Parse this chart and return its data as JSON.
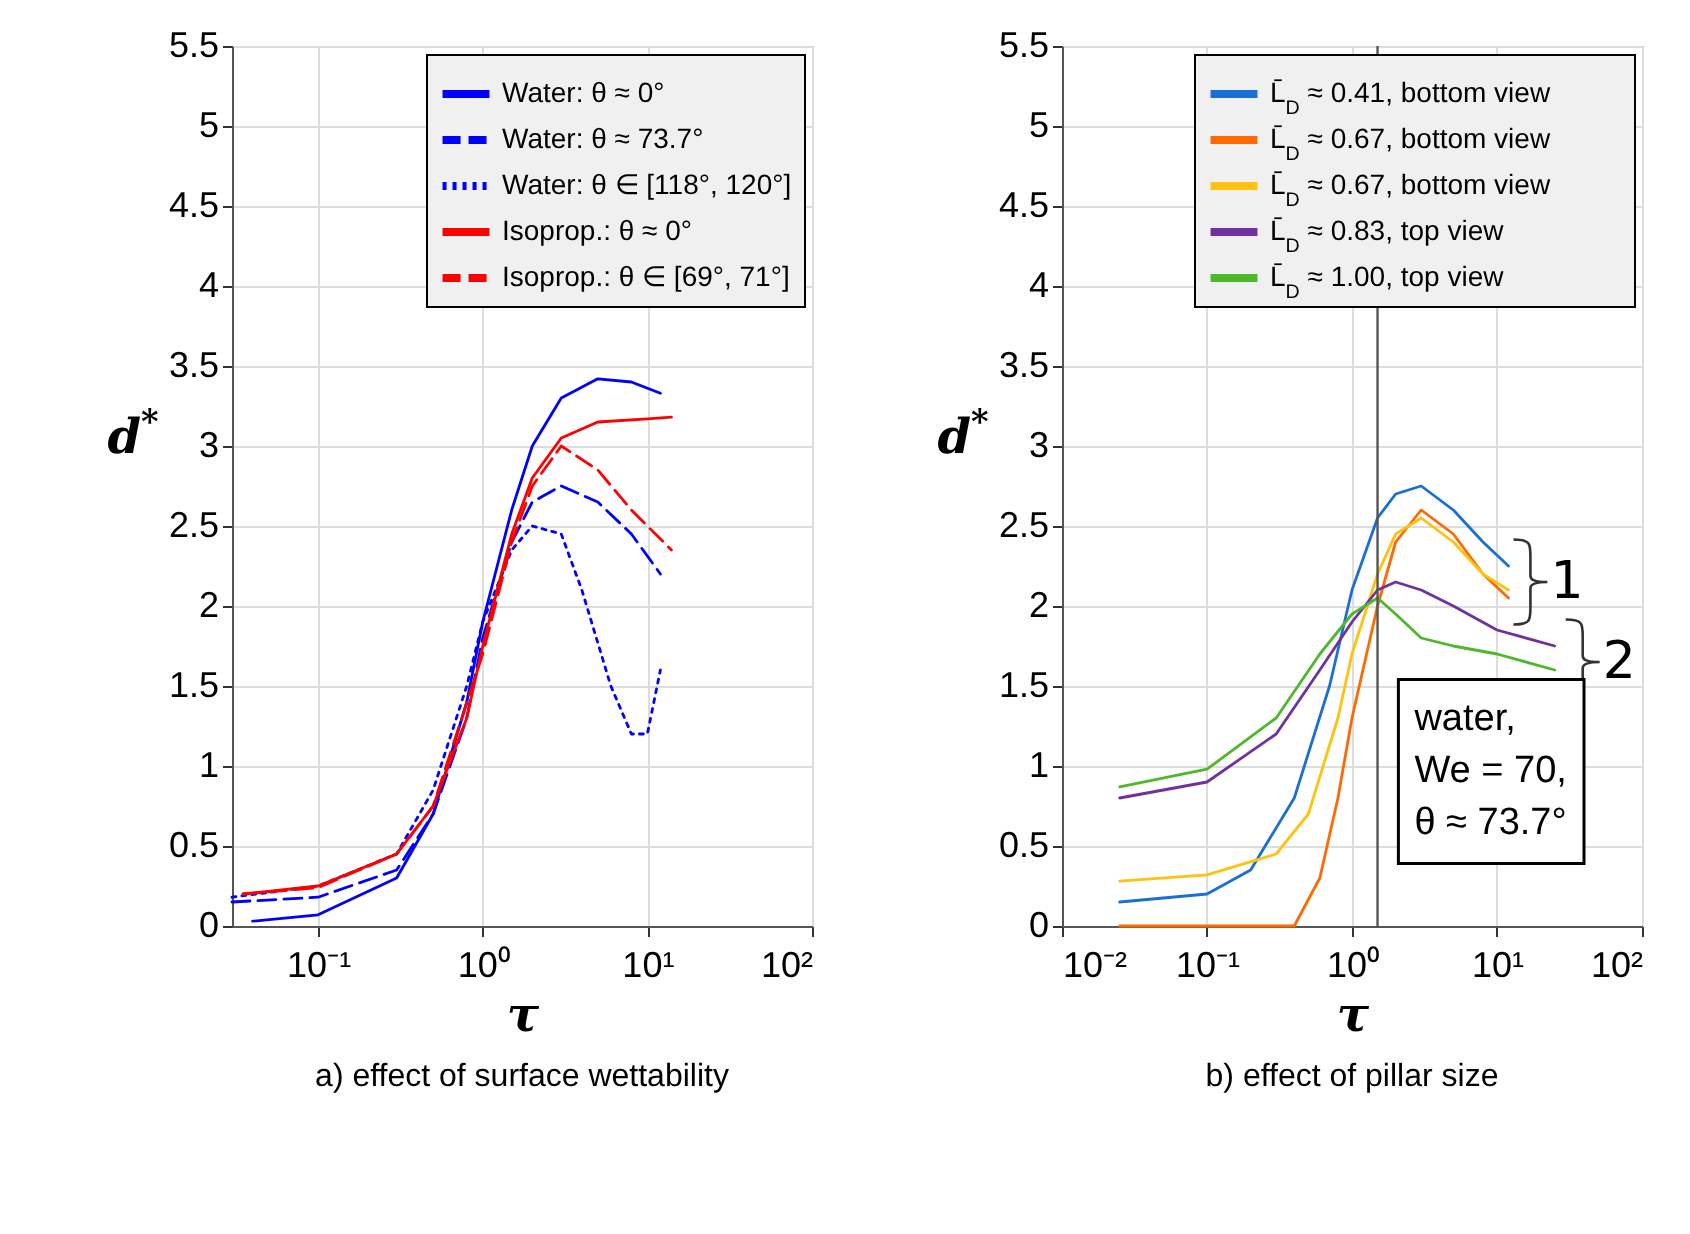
{
  "chart_data": [
    {
      "type": "line",
      "title": "a) effect of surface wettability",
      "xlabel": "τ",
      "ylabel": "d$^{*}$",
      "log": "x",
      "grid": true,
      "legend": "top right",
      "xlim": [
        0.03,
        100
      ],
      "xticks": [
        {
          "value": 0.1,
          "label": "10⁻¹"
        },
        {
          "value": 1,
          "label": "10⁰"
        },
        {
          "value": 10,
          "label": "10¹"
        },
        {
          "value": 100,
          "label": "10²"
        }
      ],
      "ylim": [
        0,
        5.5
      ],
      "yticks": [
        0,
        0.5,
        1,
        1.5,
        2,
        2.5,
        3,
        3.5,
        4,
        4.5,
        5,
        5.5
      ],
      "series": [
        {
          "name": "Water: θ ≈ 0°",
          "color": "#0000ff",
          "line_style": "solid",
          "x": [
            0.04,
            0.1,
            0.3,
            0.5,
            0.8,
            1,
            1.5,
            2,
            3,
            5,
            8,
            12
          ],
          "values": [
            0.03,
            0.07,
            0.3,
            0.7,
            1.4,
            1.9,
            2.6,
            3.0,
            3.3,
            3.42,
            3.4,
            3.33
          ]
        },
        {
          "name": "Water: θ ≈ 73.7°",
          "color": "#0000ff",
          "line_style": "dashed",
          "x": [
            0.03,
            0.1,
            0.3,
            0.5,
            0.8,
            1,
            1.5,
            2,
            3,
            5,
            8,
            12
          ],
          "values": [
            0.15,
            0.18,
            0.35,
            0.7,
            1.3,
            1.8,
            2.4,
            2.65,
            2.75,
            2.65,
            2.45,
            2.2
          ]
        },
        {
          "name": "Water: θ ∈ [118°, 120°]",
          "color": "#0000ff",
          "line_style": "dotted",
          "x": [
            0.03,
            0.1,
            0.3,
            0.5,
            0.8,
            1,
            1.5,
            2,
            3,
            4,
            6,
            8,
            10,
            12
          ],
          "values": [
            0.18,
            0.25,
            0.45,
            0.85,
            1.5,
            1.9,
            2.35,
            2.5,
            2.45,
            2.1,
            1.5,
            1.2,
            1.2,
            1.6
          ]
        },
        {
          "name": "Isoprop.: θ ≈ 0°",
          "color": "#ff0000",
          "line_style": "solid",
          "x": [
            0.035,
            0.1,
            0.3,
            0.5,
            0.8,
            1,
            1.5,
            2,
            3,
            5,
            10,
            14
          ],
          "values": [
            0.2,
            0.25,
            0.45,
            0.75,
            1.3,
            1.75,
            2.45,
            2.8,
            3.05,
            3.15,
            3.17,
            3.18
          ]
        },
        {
          "name": "Isoprop.: θ ∈ [69°, 71°]",
          "color": "#ff0000",
          "line_style": "dashed",
          "x": [
            0.035,
            0.1,
            0.3,
            0.5,
            1,
            1.5,
            2,
            3,
            5,
            8,
            14
          ],
          "values": [
            0.2,
            0.24,
            0.45,
            0.75,
            1.7,
            2.4,
            2.75,
            3.0,
            2.85,
            2.6,
            2.35
          ]
        }
      ]
    },
    {
      "type": "line",
      "title": "b) effect of pillar size",
      "xlabel": "τ",
      "ylabel": "d$^{*}$",
      "log": "x",
      "grid": true,
      "legend": "top right",
      "xlim": [
        0.01,
        100
      ],
      "xticks": [
        {
          "value": 0.01,
          "label": "10⁻²"
        },
        {
          "value": 0.1,
          "label": "10⁻¹"
        },
        {
          "value": 1,
          "label": "10⁰"
        },
        {
          "value": 10,
          "label": "10¹"
        },
        {
          "value": 100,
          "label": "10²"
        }
      ],
      "ylim": [
        0,
        5.5
      ],
      "yticks": [
        0,
        0.5,
        1,
        1.5,
        2,
        2.5,
        3,
        3.5,
        4,
        4.5,
        5,
        5.5
      ],
      "ref_lines": [
        {
          "axis": "x",
          "value": 1.5,
          "color": "#555555"
        }
      ],
      "annotations": [
        {
          "text": "1",
          "x": 17,
          "y": 2.15
        },
        {
          "text": "2",
          "x": 39,
          "y": 1.65
        },
        "water,\nWe = 70,\nθ ≈ 73.7°"
      ],
      "series": [
        {
          "name": "L̄$_{D}$ ≈ 0.41, bottom view",
          "color": "#1a6fd6",
          "x": [
            0.025,
            0.1,
            0.2,
            0.4,
            0.7,
            1,
            1.5,
            2,
            3,
            5,
            8,
            12
          ],
          "values": [
            0.15,
            0.2,
            0.35,
            0.8,
            1.5,
            2.1,
            2.55,
            2.7,
            2.75,
            2.6,
            2.4,
            2.25
          ]
        },
        {
          "name": "L̄$_{D}$ ≈ 0.67, bottom view",
          "color": "#ff6a00",
          "x": [
            0.025,
            0.4,
            0.6,
            0.8,
            1,
            1.5,
            2,
            3,
            5,
            8,
            12
          ],
          "values": [
            0,
            0,
            0.3,
            0.8,
            1.3,
            2.0,
            2.4,
            2.6,
            2.45,
            2.2,
            2.05
          ]
        },
        {
          "name": "L̄$_{D}$ ≈ 0.67, bottom view",
          "color": "#ffc20e",
          "x": [
            0.025,
            0.1,
            0.3,
            0.5,
            0.8,
            1,
            1.5,
            2,
            3,
            5,
            8,
            12
          ],
          "values": [
            0.28,
            0.32,
            0.45,
            0.7,
            1.3,
            1.7,
            2.2,
            2.45,
            2.55,
            2.4,
            2.2,
            2.1
          ]
        },
        {
          "name": "L̄$_{D}$ ≈ 0.83, top view",
          "color": "#7030a0",
          "x": [
            0.025,
            0.1,
            0.3,
            0.6,
            1,
            1.5,
            2,
            3,
            5,
            10,
            25
          ],
          "values": [
            0.8,
            0.9,
            1.2,
            1.6,
            1.9,
            2.1,
            2.15,
            2.1,
            2.0,
            1.85,
            1.75
          ]
        },
        {
          "name": "L̄$_{D}$ ≈ 1.00, top view",
          "color": "#4cb82a",
          "x": [
            0.025,
            0.1,
            0.3,
            0.6,
            1,
            1.5,
            2,
            3,
            5,
            10,
            25
          ],
          "values": [
            0.87,
            0.98,
            1.3,
            1.7,
            1.95,
            2.05,
            1.95,
            1.8,
            1.75,
            1.7,
            1.6
          ]
        }
      ]
    }
  ]
}
